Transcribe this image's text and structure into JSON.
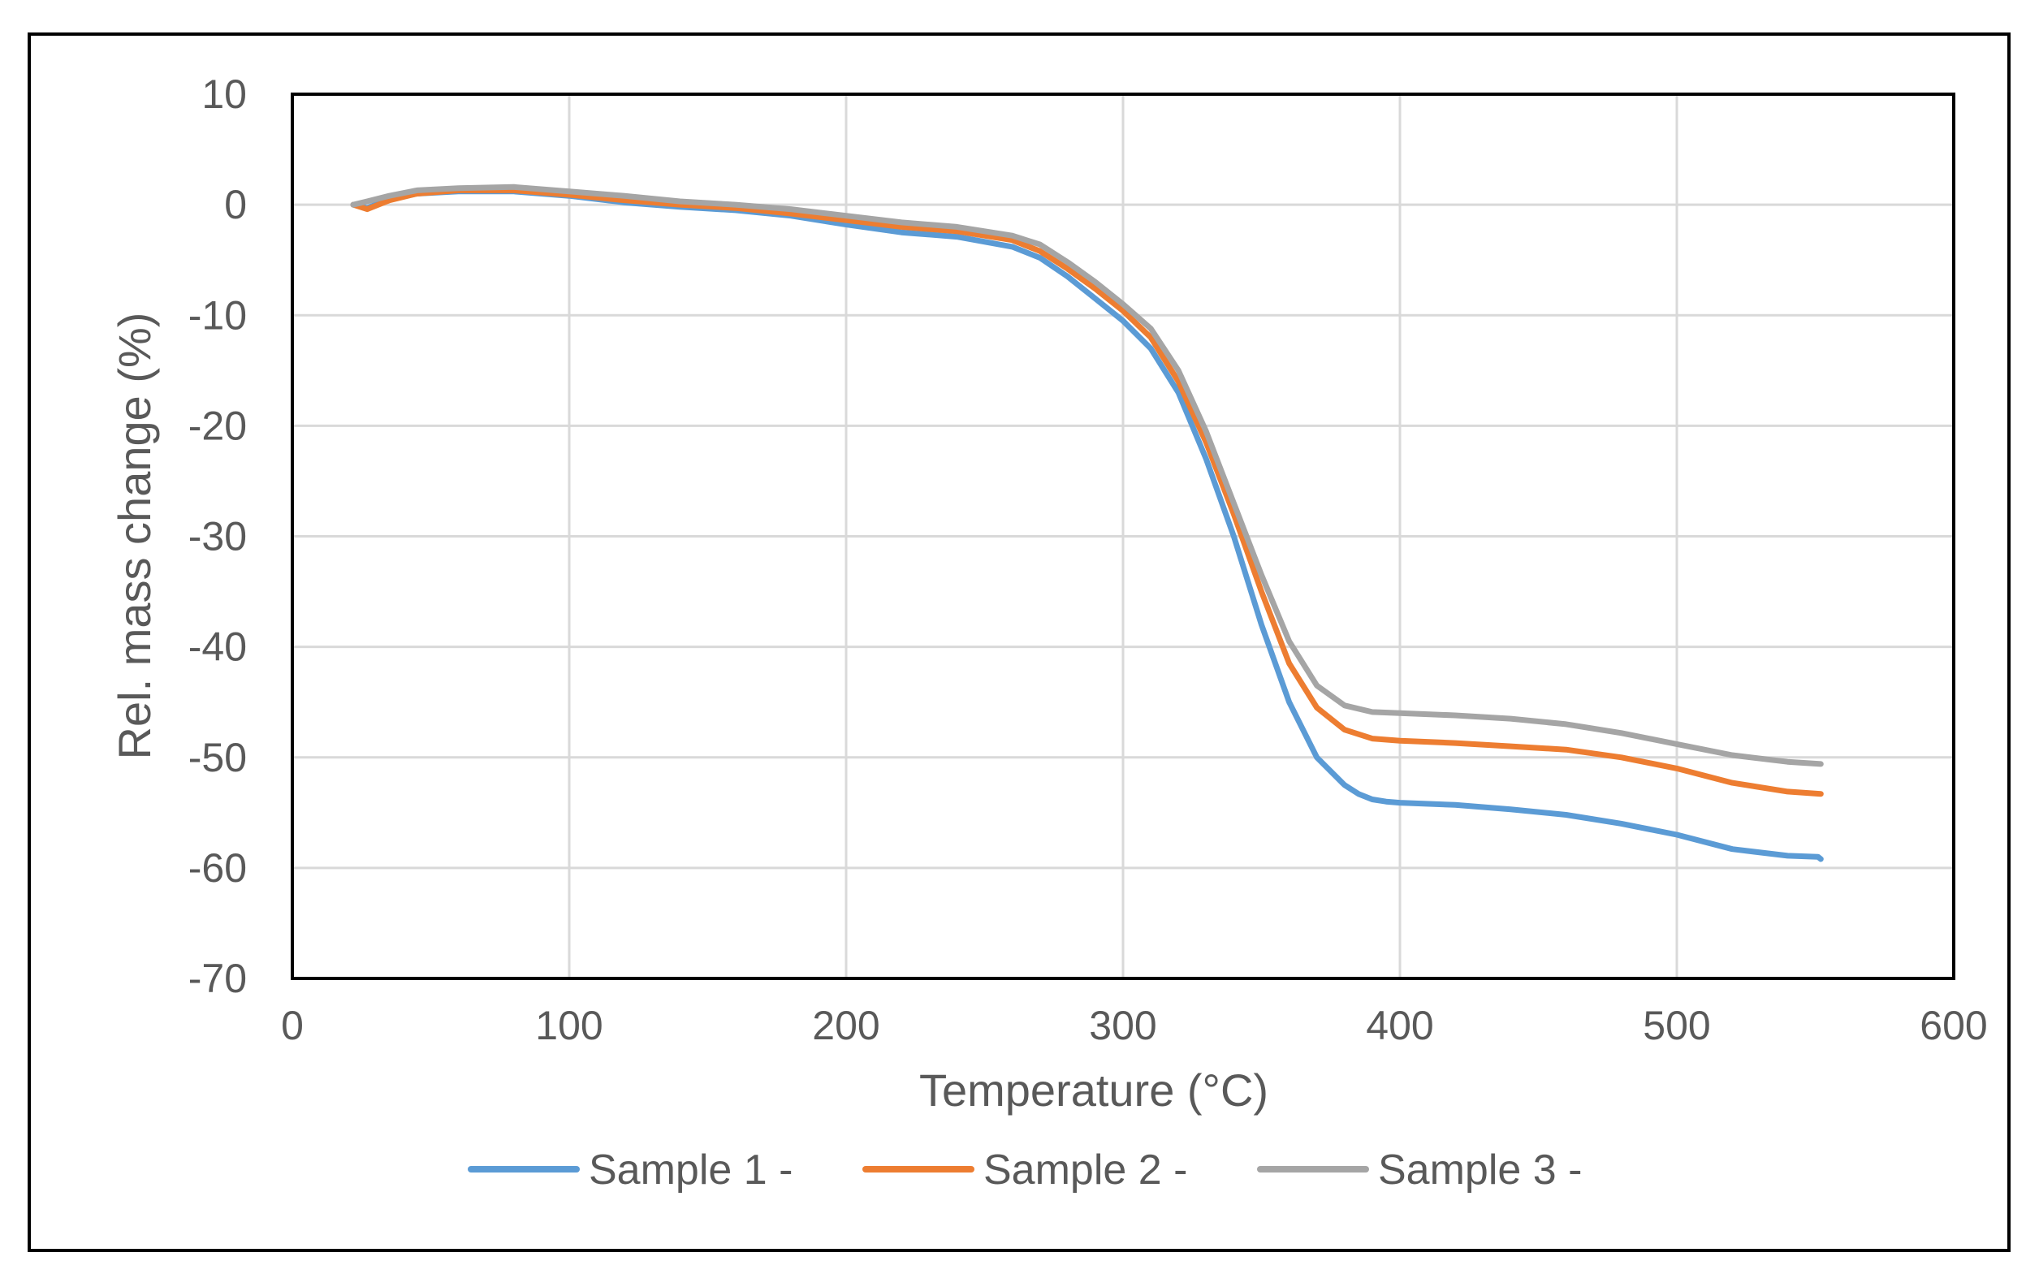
{
  "chart_data": {
    "type": "line",
    "title": "",
    "xlabel": "Temperature (°C)",
    "ylabel": "Rel. mass change (%)",
    "xlim": [
      0,
      600
    ],
    "ylim": [
      -70,
      10
    ],
    "xticks": [
      0,
      100,
      200,
      300,
      400,
      500,
      600
    ],
    "yticks": [
      10,
      0,
      -10,
      -20,
      -30,
      -40,
      -50,
      -60,
      -70
    ],
    "grid": true,
    "legend_position": "bottom",
    "series": [
      {
        "name": "Sample 1 -",
        "color": "#5b9bd5",
        "x": [
          22,
          27,
          35,
          45,
          60,
          80,
          100,
          120,
          140,
          160,
          180,
          200,
          220,
          240,
          260,
          270,
          280,
          290,
          300,
          310,
          320,
          330,
          340,
          350,
          360,
          370,
          380,
          385,
          390,
          395,
          400,
          420,
          440,
          460,
          480,
          500,
          520,
          540,
          551,
          552
        ],
        "y": [
          0,
          -0.3,
          0.5,
          1.0,
          1.2,
          1.2,
          0.8,
          0.2,
          -0.2,
          -0.5,
          -1.0,
          -1.8,
          -2.5,
          -2.9,
          -3.8,
          -4.8,
          -6.5,
          -8.5,
          -10.5,
          -13,
          -17,
          -23,
          -30,
          -38,
          -45,
          -50,
          -52.5,
          -53.3,
          -53.8,
          -54.0,
          -54.1,
          -54.3,
          -54.7,
          -55.2,
          -56,
          -57,
          -58.3,
          -58.9,
          -59.0,
          -59.2
        ]
      },
      {
        "name": "Sample 2 -",
        "color": "#ed7d31",
        "x": [
          22,
          27,
          35,
          45,
          60,
          80,
          100,
          120,
          140,
          160,
          180,
          200,
          220,
          240,
          260,
          270,
          280,
          290,
          300,
          310,
          320,
          330,
          340,
          350,
          360,
          370,
          380,
          390,
          400,
          420,
          440,
          460,
          480,
          500,
          520,
          540,
          552
        ],
        "y": [
          0,
          -0.4,
          0.4,
          1.0,
          1.3,
          1.3,
          0.9,
          0.4,
          0,
          -0.3,
          -0.8,
          -1.4,
          -2.0,
          -2.4,
          -3.2,
          -4.2,
          -5.8,
          -7.6,
          -9.6,
          -12,
          -16,
          -21.5,
          -28,
          -35,
          -41.5,
          -45.5,
          -47.5,
          -48.3,
          -48.5,
          -48.7,
          -49.0,
          -49.3,
          -50,
          -51,
          -52.3,
          -53.1,
          -53.3
        ]
      },
      {
        "name": "Sample 3 -",
        "color": "#a5a5a5",
        "x": [
          22,
          27,
          35,
          45,
          60,
          80,
          100,
          120,
          140,
          160,
          180,
          200,
          220,
          240,
          260,
          270,
          280,
          290,
          300,
          310,
          320,
          330,
          340,
          350,
          360,
          370,
          380,
          390,
          400,
          420,
          440,
          460,
          480,
          500,
          520,
          540,
          552
        ],
        "y": [
          0,
          0.3,
          0.8,
          1.3,
          1.5,
          1.6,
          1.2,
          0.8,
          0.3,
          0,
          -0.4,
          -1.0,
          -1.6,
          -2.0,
          -2.8,
          -3.6,
          -5.2,
          -7.0,
          -9.0,
          -11.2,
          -15,
          -20.5,
          -27,
          -33.5,
          -39.5,
          -43.5,
          -45.3,
          -45.9,
          -46.0,
          -46.2,
          -46.5,
          -47.0,
          -47.8,
          -48.8,
          -49.8,
          -50.4,
          -50.6
        ]
      }
    ]
  }
}
